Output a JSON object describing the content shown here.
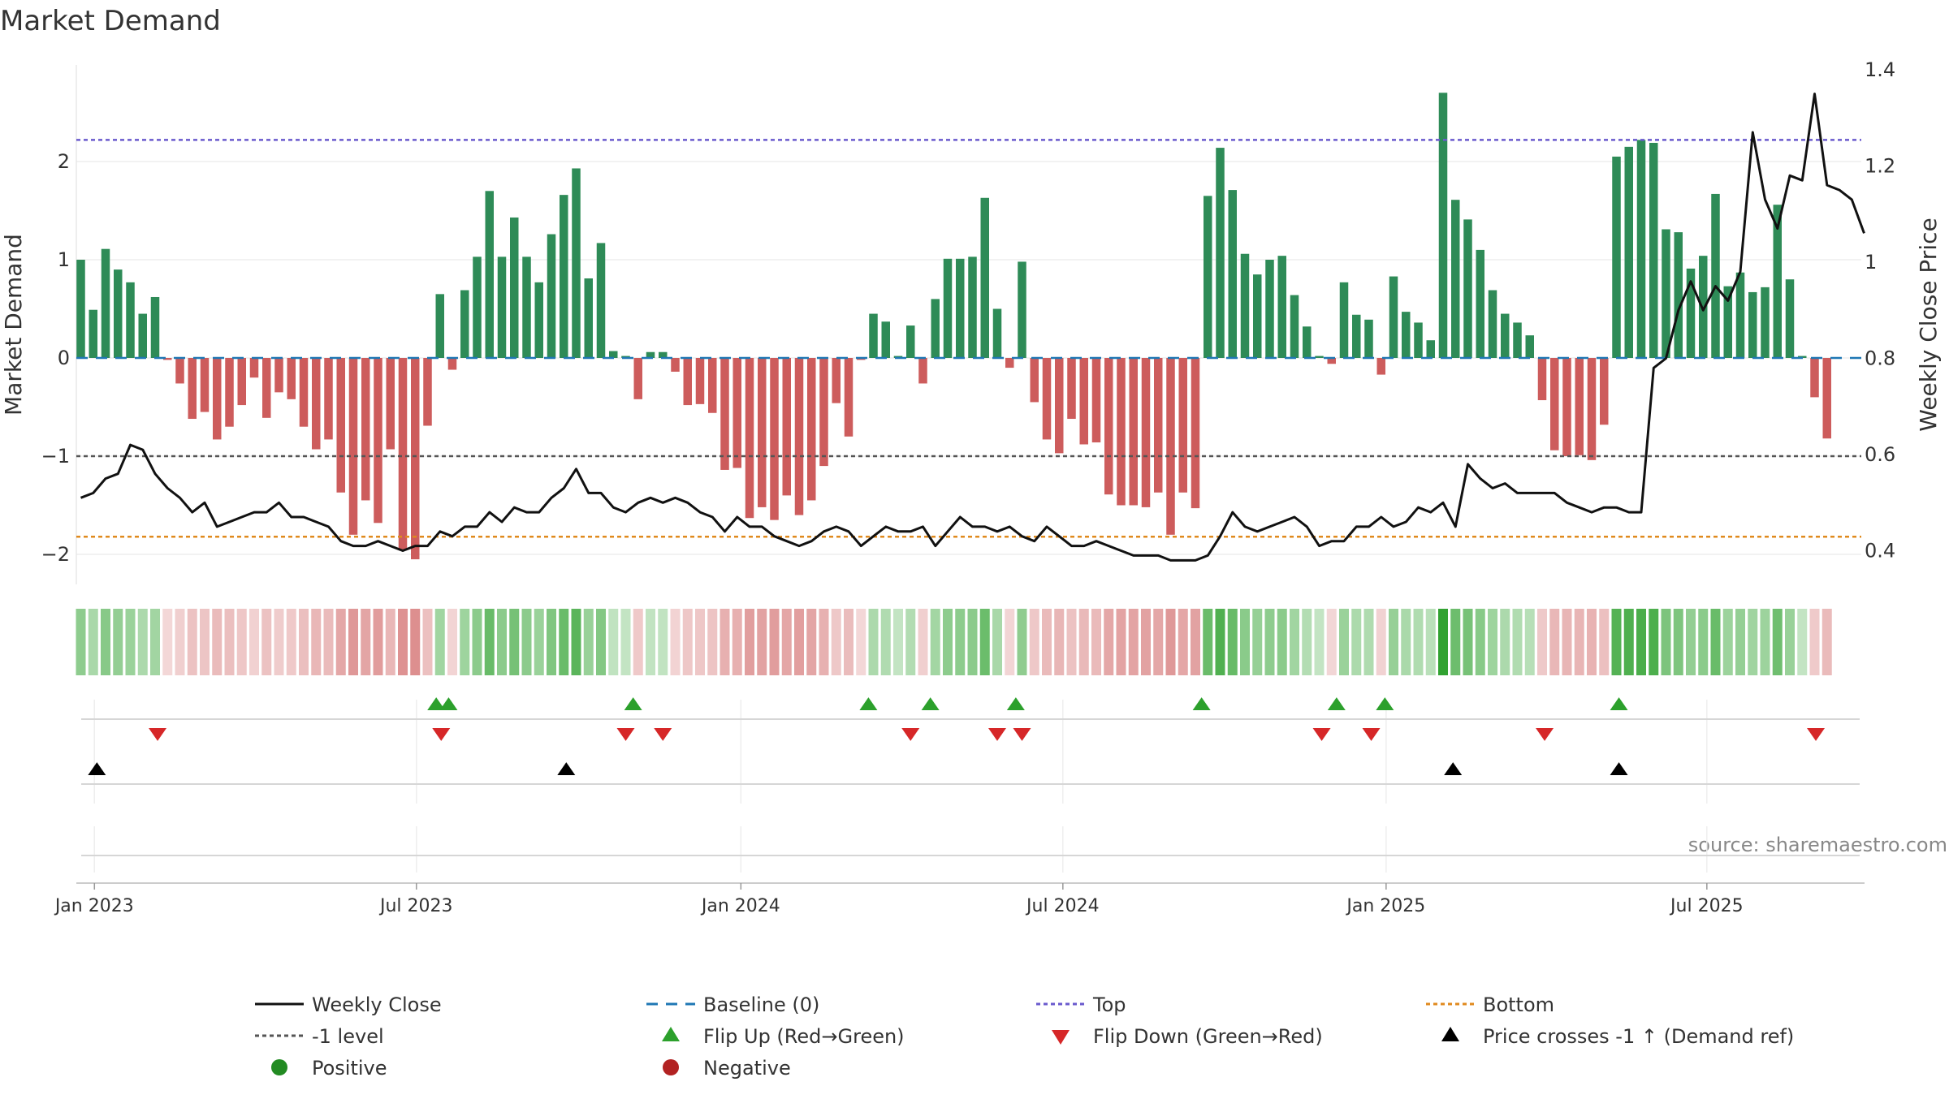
{
  "chart_data": {
    "type": "bar",
    "title": "Market Demand",
    "ylabel": "Market Demand",
    "y2label": "Weekly Close Price",
    "ylim": [
      -2.3,
      2.95
    ],
    "y2lim": [
      0.33,
      1.41
    ],
    "y_ticks": [
      -2,
      -1,
      0,
      1,
      2
    ],
    "y_tick_labels": [
      "−2",
      "−1",
      "0",
      "1",
      "2"
    ],
    "y2_ticks": [
      0.4,
      0.6,
      0.8,
      1.0,
      1.2,
      1.4
    ],
    "y2_tick_labels": [
      "0.4",
      "0.6",
      "0.8",
      "1",
      "1.2",
      "1.4"
    ],
    "x_tick_labels": [
      "Jan 2023",
      "Jul 2023",
      "Jan 2024",
      "Jul 2024",
      "Jan 2025",
      "Jul 2025"
    ],
    "x_tick_weeks": [
      1.1,
      27.1,
      53.3,
      79.3,
      105.4,
      131.3
    ],
    "top_level": 2.22,
    "bottom_level": -1.82,
    "minus_one_level": -1,
    "baseline_level": 0,
    "demand": [
      1.0,
      0.49,
      1.11,
      0.9,
      0.77,
      0.45,
      0.62,
      -0.02,
      -0.26,
      -0.62,
      -0.55,
      -0.83,
      -0.7,
      -0.48,
      -0.2,
      -0.61,
      -0.35,
      -0.42,
      -0.7,
      -0.93,
      -0.83,
      -1.37,
      -1.8,
      -1.45,
      -1.68,
      -0.93,
      -1.96,
      -2.05,
      -0.69,
      0.65,
      -0.12,
      0.69,
      1.03,
      1.7,
      1.03,
      1.43,
      1.03,
      0.77,
      1.26,
      1.66,
      1.93,
      0.81,
      1.17,
      0.07,
      0.02,
      -0.42,
      0.06,
      0.06,
      -0.14,
      -0.48,
      -0.47,
      -0.56,
      -1.14,
      -1.12,
      -1.63,
      -1.52,
      -1.65,
      -1.4,
      -1.6,
      -1.45,
      -1.1,
      -0.46,
      -0.8,
      -0.02,
      0.45,
      0.37,
      0.02,
      0.33,
      -0.26,
      0.6,
      1.01,
      1.01,
      1.03,
      1.63,
      0.5,
      -0.1,
      0.98,
      -0.45,
      -0.83,
      -0.97,
      -0.62,
      -0.88,
      -0.86,
      -1.39,
      -1.5,
      -1.5,
      -1.52,
      -1.37,
      -1.8,
      -1.37,
      -1.53,
      1.65,
      2.14,
      1.71,
      1.06,
      0.85,
      1.0,
      1.04,
      0.64,
      0.32,
      0.02,
      -0.06,
      0.77,
      0.44,
      0.39,
      -0.17,
      0.83,
      0.47,
      0.36,
      0.18,
      2.7,
      1.61,
      1.41,
      1.1,
      0.69,
      0.45,
      0.36,
      0.23,
      -0.43,
      -0.94,
      -1.0,
      -0.99,
      -1.04,
      -0.68,
      2.05,
      2.15,
      2.22,
      2.19,
      1.31,
      1.28,
      0.91,
      1.04,
      1.67,
      0.73,
      0.87,
      0.67,
      0.72,
      1.56,
      0.8,
      0.02,
      -0.4,
      -0.82
    ],
    "weekly_close": [
      0.51,
      0.52,
      0.55,
      0.56,
      0.62,
      0.61,
      0.56,
      0.53,
      0.51,
      0.48,
      0.5,
      0.45,
      0.46,
      0.47,
      0.48,
      0.48,
      0.5,
      0.47,
      0.47,
      0.46,
      0.45,
      0.42,
      0.41,
      0.41,
      0.42,
      0.41,
      0.4,
      0.41,
      0.41,
      0.44,
      0.43,
      0.45,
      0.45,
      0.48,
      0.46,
      0.49,
      0.48,
      0.48,
      0.51,
      0.53,
      0.57,
      0.52,
      0.52,
      0.49,
      0.48,
      0.5,
      0.51,
      0.5,
      0.51,
      0.5,
      0.48,
      0.47,
      0.44,
      0.47,
      0.45,
      0.45,
      0.43,
      0.42,
      0.41,
      0.42,
      0.44,
      0.45,
      0.44,
      0.41,
      0.43,
      0.45,
      0.44,
      0.44,
      0.45,
      0.41,
      0.44,
      0.47,
      0.45,
      0.45,
      0.44,
      0.45,
      0.43,
      0.42,
      0.45,
      0.43,
      0.41,
      0.41,
      0.42,
      0.41,
      0.4,
      0.39,
      0.39,
      0.39,
      0.38,
      0.38,
      0.38,
      0.39,
      0.43,
      0.48,
      0.45,
      0.44,
      0.45,
      0.46,
      0.47,
      0.45,
      0.41,
      0.42,
      0.42,
      0.45,
      0.45,
      0.47,
      0.45,
      0.46,
      0.49,
      0.48,
      0.5,
      0.45,
      0.58,
      0.55,
      0.53,
      0.54,
      0.52,
      0.52,
      0.52,
      0.52,
      0.5,
      0.49,
      0.48,
      0.49,
      0.49,
      0.48,
      0.48,
      0.78,
      0.8,
      0.9,
      0.96,
      0.9,
      0.95,
      0.92,
      0.98,
      1.27,
      1.13,
      1.07,
      1.18,
      1.17,
      1.35,
      1.16,
      1.15,
      1.13,
      1.06
    ],
    "flip_up_weeks": [
      28.7,
      29.7,
      44.6,
      63.6,
      68.6,
      75.5,
      90.5,
      101.4,
      105.3,
      124.2
    ],
    "flip_down_weeks": [
      6.2,
      29.1,
      44.0,
      47.0,
      67.0,
      74.0,
      76.0,
      100.2,
      104.2,
      118.2,
      140.1
    ],
    "price_cross_weeks": [
      1.3,
      39.2,
      110.8,
      124.2
    ],
    "legend": [
      "Weekly Close",
      "Baseline (0)",
      "Top",
      "Bottom",
      "-1 level",
      "Flip Up (Red→Green)",
      "Flip Down (Green→Red)",
      "Price crosses -1 ↑ (Demand ref)",
      "Positive",
      "Negative"
    ],
    "legend_placement": "bottom",
    "source": "source: sharemaestro.com",
    "grid": true
  },
  "colors": {
    "positive": "#2e8b57",
    "negative": "#cd5c5c",
    "price": "#111111",
    "baseline": "#1f77b4",
    "top": "#6a5acd",
    "bottom": "#e08a1e",
    "minus_one": "#555555",
    "flip_up": "#2ca02c",
    "flip_down": "#d62728",
    "cross": "#000000",
    "pos_dot": "#228b22",
    "neg_dot": "#b22222",
    "grid": "#e6e6e6",
    "text": "#333333",
    "source": "#888888"
  }
}
